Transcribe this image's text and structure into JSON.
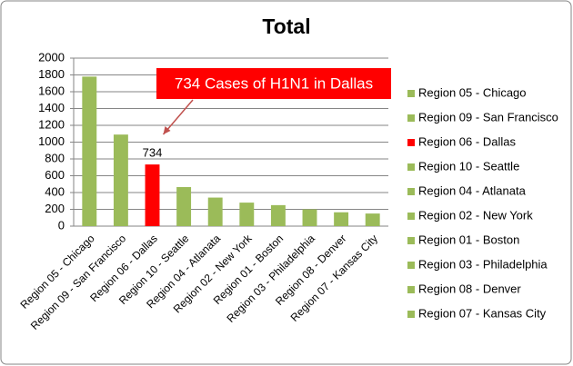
{
  "chart_data": {
    "type": "bar",
    "title": "Total",
    "annotation": "734 Cases of H1N1 in Dallas",
    "categories": [
      "Region 05 - Chicago",
      "Region 09 - San Francisco",
      "Region 06 - Dallas",
      "Region 10 - Seattle",
      "Region 04 - Atlanata",
      "Region 02 - New York",
      "Region 01 - Boston",
      "Region 03 - Philadelphia",
      "Region 08 - Denver",
      "Region 07 - Kansas City"
    ],
    "values": [
      1780,
      1090,
      734,
      465,
      340,
      280,
      250,
      200,
      165,
      150
    ],
    "colors": [
      "#9bbb59",
      "#9bbb59",
      "#ff0000",
      "#9bbb59",
      "#9bbb59",
      "#9bbb59",
      "#9bbb59",
      "#9bbb59",
      "#9bbb59",
      "#9bbb59"
    ],
    "labeled_index": 2,
    "ylim": [
      0,
      2000
    ],
    "yticks": [
      0,
      200,
      400,
      600,
      800,
      1000,
      1200,
      1400,
      1600,
      1800,
      2000
    ],
    "grid": true,
    "legend": "right"
  }
}
